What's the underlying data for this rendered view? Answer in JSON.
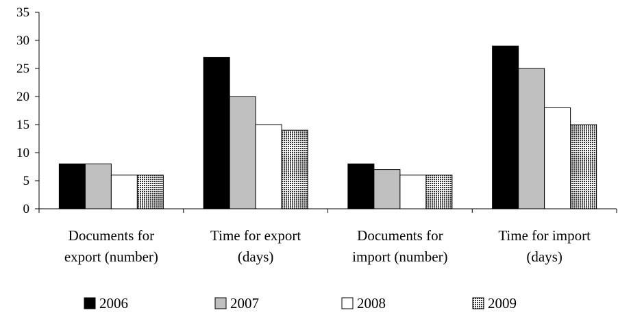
{
  "chart_data": {
    "type": "bar",
    "title": "",
    "xlabel": "",
    "ylabel": "",
    "ylim": [
      0,
      35
    ],
    "yticks": [
      0,
      5,
      10,
      15,
      20,
      25,
      30,
      35
    ],
    "grid": false,
    "legend_position": "bottom",
    "categories": [
      [
        "Documents for",
        "export (number)"
      ],
      [
        "Time for export",
        "(days)"
      ],
      [
        "Documents for",
        "import (number)"
      ],
      [
        "Time for import",
        "(days)"
      ]
    ],
    "series": [
      {
        "name": "2006",
        "fill": "#000000",
        "pattern": "solid",
        "values": [
          8,
          27,
          8,
          29
        ]
      },
      {
        "name": "2007",
        "fill": "#c0c0c0",
        "pattern": "solid",
        "values": [
          8,
          20,
          7,
          25
        ]
      },
      {
        "name": "2008",
        "fill": "#ffffff",
        "pattern": "solid",
        "values": [
          6,
          15,
          6,
          18
        ]
      },
      {
        "name": "2009",
        "fill": "#808080",
        "pattern": "checkered",
        "values": [
          6,
          14,
          6,
          15
        ]
      }
    ]
  }
}
